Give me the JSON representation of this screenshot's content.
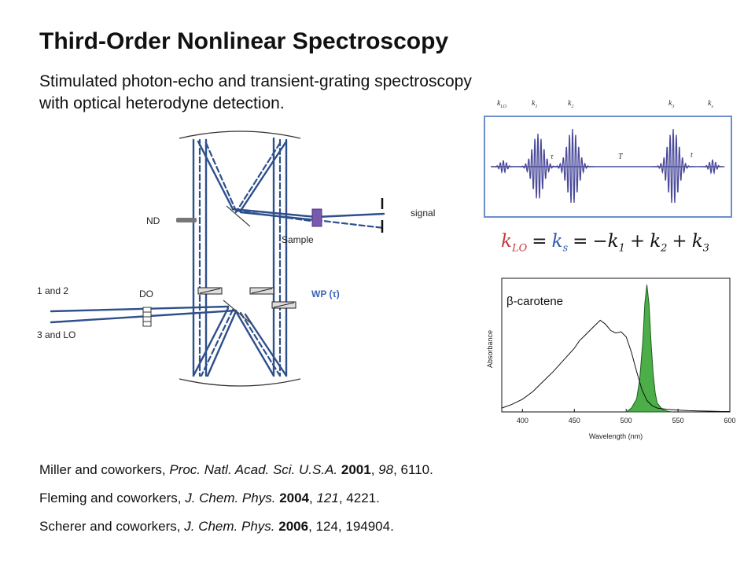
{
  "slide": {
    "title": "Third-Order Nonlinear Spectroscopy",
    "subtitle_line1": "Stimulated photon-echo and transient-grating spectroscopy",
    "subtitle_line2": "with optical heterodyne detection."
  },
  "setup": {
    "labels": {
      "nd": "ND",
      "signal": "signal",
      "sample": "Sample",
      "beams_12": "1 and 2",
      "do": "DO",
      "wp": "WP (τ)",
      "beams_3lo": "3 and LO"
    }
  },
  "pulse_sequence": {
    "k_labels": [
      "k",
      "k",
      "k",
      "k",
      "k"
    ],
    "k_subscripts": [
      "LO",
      "1",
      "2",
      "3",
      "s"
    ],
    "delays": [
      "τ",
      "T",
      "t"
    ]
  },
  "equation": {
    "k_lo": "k",
    "k_lo_sub": "LO",
    "eq1": "=",
    "k_s": "k",
    "k_s_sub": "s",
    "eq2": "=",
    "term1": "−k",
    "term1_sub": "1",
    "plus1": "+",
    "term2": "k",
    "term2_sub": "2",
    "plus2": "+",
    "term3": "k",
    "term3_sub": "3"
  },
  "chart_data": {
    "type": "line",
    "title": "",
    "annotation": "β-carotene",
    "xlabel": "Wavelength (nm)",
    "ylabel": "Absorbance",
    "xlim": [
      380,
      600
    ],
    "ylim": [
      0,
      1.05
    ],
    "x_ticks": [
      400,
      450,
      500,
      550,
      600
    ],
    "series": [
      {
        "x": [
          380,
          390,
          400,
          410,
          420,
          430,
          440,
          450,
          455,
          460,
          465,
          470,
          475,
          480,
          485,
          490,
          495,
          500,
          505,
          510,
          515,
          520,
          525,
          530,
          540,
          550,
          560,
          570,
          580,
          590,
          600
        ],
        "y": [
          0.03,
          0.06,
          0.1,
          0.16,
          0.24,
          0.32,
          0.41,
          0.5,
          0.56,
          0.6,
          0.64,
          0.68,
          0.72,
          0.69,
          0.64,
          0.62,
          0.63,
          0.59,
          0.47,
          0.32,
          0.18,
          0.09,
          0.05,
          0.03,
          0.02,
          0.015,
          0.01,
          0.008,
          0.006,
          0.004,
          0.003
        ]
      },
      {
        "x": [
          500,
          505,
          510,
          513,
          516,
          518,
          520,
          522,
          524,
          526,
          528,
          530,
          535,
          540,
          545
        ],
        "y": [
          0.0,
          0.03,
          0.1,
          0.25,
          0.55,
          0.85,
          1.0,
          0.85,
          0.55,
          0.3,
          0.15,
          0.07,
          0.02,
          0.005,
          0.0
        ]
      }
    ]
  },
  "references": [
    {
      "authors": "Miller and coworkers, ",
      "journal": "Proc. Natl. Acad. Sci. U.S.A.",
      "year": "2001",
      "volume": "98",
      "pages": "6110."
    },
    {
      "authors": "Fleming and coworkers, ",
      "journal": "J. Chem. Phys.",
      "year": "2004",
      "volume": "121",
      "pages": "4221."
    },
    {
      "authors": "Scherer and coworkers, ",
      "journal": "J. Chem. Phys.",
      "year": "2006",
      "volume": "124",
      "pages": "194904."
    }
  ],
  "colors": {
    "beam": "#2e4f8c",
    "sample": "#7a5ab0",
    "spectrum_fill": "#4cae48",
    "pulse": "#4a4a9a"
  }
}
